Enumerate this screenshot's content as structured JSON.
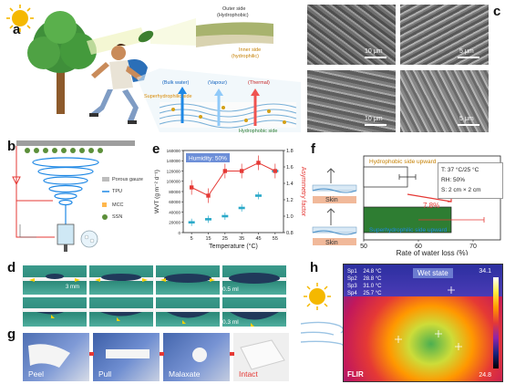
{
  "panel_labels": [
    "a",
    "b",
    "c",
    "d",
    "e",
    "f",
    "g",
    "h"
  ],
  "panel_a": {
    "outer_side": "Outer side",
    "outer_hydrophobic": "(Hydrophobic)",
    "inner_side": "Inner side",
    "inner_hydrophilic": "(hydrophilic)",
    "bulk_water": "(Bulk water)",
    "vapour": "(Vapour)",
    "thermal": "(Thermal)",
    "superhydrophilic_side": "Superhydrophilic side",
    "hydrophobic_side": "Hydrophobic side"
  },
  "panel_b": {
    "legend": [
      "Porous gauze",
      "TPU",
      "MCC",
      "SSN"
    ]
  },
  "panel_c": {
    "scale_bars": [
      "10 μm",
      "5 μm",
      "10 μm",
      "5 μm"
    ]
  },
  "panel_d": {
    "scale_top": "3 mm",
    "volume_top": "0.5 ml",
    "volume_bottom": "0.3 ml"
  },
  "panel_f": {
    "top_bar_label": "Hydrophobic side upward",
    "bottom_bar_label": "Superhydrophilic side upward",
    "skin_label": "Skin",
    "conditions": [
      "T: 37 °C/25 °C",
      "RH: 50%",
      "S: 2 cm × 2 cm"
    ],
    "difference": "7.8%",
    "xlabel": "Rate of water loss (%)",
    "xticks": [
      "50",
      "60",
      "70"
    ]
  },
  "panel_g": {
    "captions": [
      "Peel",
      "Pull",
      "Malaxate",
      "Intact"
    ]
  },
  "panel_h": {
    "title": "Wet state",
    "spots": [
      {
        "name": "Sp1",
        "value": "24.8 °C"
      },
      {
        "name": "Sp2",
        "value": "28.8 °C"
      },
      {
        "name": "Sp3",
        "value": "31.0 °C"
      },
      {
        "name": "Sp4",
        "value": "25.7 °C"
      }
    ],
    "scale_max": "34.1",
    "scale_min": "24.8",
    "brand": "FLIR"
  },
  "colors": {
    "hydrophobic_bar": "#ffffff",
    "superhydrophilic_bar": "#2e7d32",
    "wvt_series": "#2aa9c9",
    "asym_series": "#e53935",
    "diff_arrow": "#e53935"
  },
  "chart_data": {
    "type": "line",
    "series_labels_shown": [
      "WVT",
      "Asymmetry factor"
    ],
    "title": "",
    "legend_box": "Humidity: 50%",
    "xlabel": "Temperature (°C)",
    "ylabel": "WVT (g m⁻² d⁻¹)",
    "y2label": "Asymmetry factor",
    "x": [
      5,
      15,
      25,
      35,
      45,
      55
    ],
    "xticks": [
      "5",
      "15",
      "25",
      "35",
      "45",
      "55"
    ],
    "yticks": [
      "0",
      "20000",
      "40000",
      "60000",
      "80000",
      "100000",
      "120000",
      "140000",
      "160000"
    ],
    "y2ticks": [
      "0.8",
      "1.0",
      "1.2",
      "1.4",
      "1.6",
      "1.8"
    ],
    "ylim": [
      0,
      160000
    ],
    "y2lim": [
      0.8,
      1.8
    ],
    "series": [
      {
        "values": [
          20000,
          26000,
          32000,
          48000,
          72000,
          120000
        ]
      },
      {
        "values": [
          1.35,
          1.25,
          1.55,
          1.55,
          1.65,
          1.55
        ]
      }
    ]
  }
}
